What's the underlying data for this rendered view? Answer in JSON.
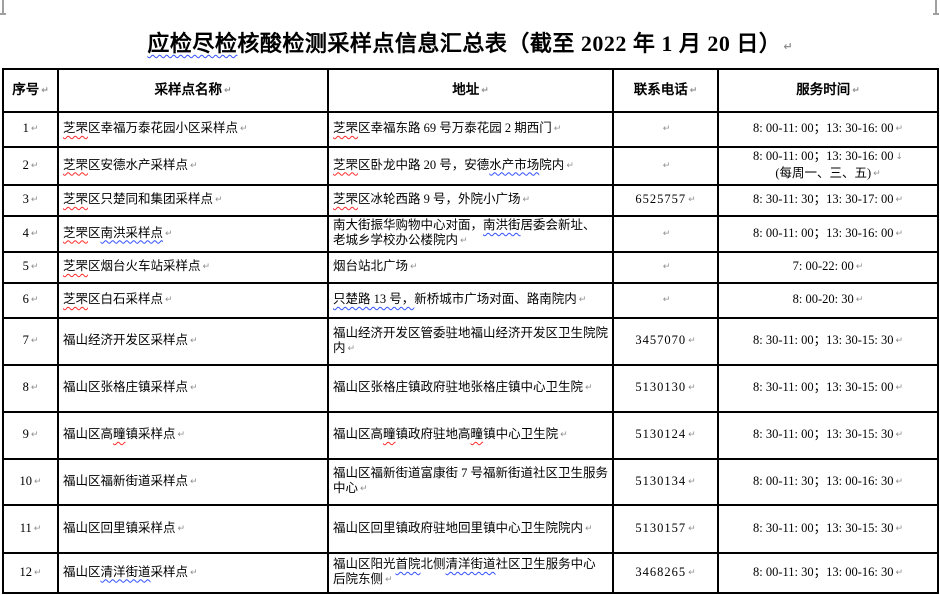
{
  "page": {
    "background": "#ffffff",
    "border_color": "#000000",
    "spellcheck_red": "#ff2a2a",
    "grammar_blue": "#3050ff",
    "formatting_mark_color": "#8f8f8f"
  },
  "marks": {
    "cell_end": "↵",
    "line_break": "↓"
  },
  "title": {
    "full_text": "应检尽检核酸检测采样点信息汇总表（截至 2022 年 1 月 20 日）",
    "segments": [
      {
        "text": "应检尽检",
        "wavy": "blue"
      },
      {
        "text": "核酸检测采样点信息汇总表（截至 2022 年 1 月 20 日）"
      }
    ]
  },
  "table": {
    "headers": [
      "序号",
      "采样点名称",
      "地址",
      "联系电话",
      "服务时间"
    ],
    "rows": [
      {
        "no": "1",
        "name": [
          {
            "text": "芝罘",
            "wavy": "red"
          },
          {
            "text": "区幸福万泰花园小区采样点"
          }
        ],
        "address": [
          {
            "text": "芝罘",
            "wavy": "red"
          },
          {
            "text": "区幸福东路 69 号万泰花园 2 期西门"
          }
        ],
        "phone": "",
        "time": [
          "8: 00-11: 00；13: 30-16: 00"
        ]
      },
      {
        "no": "2",
        "name": [
          {
            "text": "芝罘",
            "wavy": "red"
          },
          {
            "text": "区安德水产采样点"
          }
        ],
        "address": [
          {
            "text": "芝罘",
            "wavy": "red"
          },
          {
            "text": "区卧龙中路 20 号，安德"
          },
          {
            "text": "水产市场",
            "wavy": "blue"
          },
          {
            "text": "院内"
          }
        ],
        "phone": "",
        "time": [
          "8: 00-11: 00；13: 30-16: 00",
          "(每周一、三、五)"
        ]
      },
      {
        "no": "3",
        "name": [
          {
            "text": "芝罘",
            "wavy": "red"
          },
          {
            "text": "区只楚同和集团采样点"
          }
        ],
        "address": [
          {
            "text": "芝罘",
            "wavy": "red"
          },
          {
            "text": "区冰轮西路 9 号，外院小广场"
          }
        ],
        "phone": "6525757",
        "time": [
          "8: 30-11: 30；13: 30-17: 00"
        ]
      },
      {
        "no": "4",
        "name": [
          {
            "text": "芝罘",
            "wavy": "red"
          },
          {
            "text": "区"
          },
          {
            "text": "南洪采样点",
            "wavy": "blue"
          }
        ],
        "address": [
          {
            "text": "南大街振华购物中心对面，"
          },
          {
            "text": "南洪街",
            "wavy": "blue"
          },
          {
            "text": "居委会新址、老城乡学校办公楼院内"
          }
        ],
        "phone": "",
        "time": [
          "8: 00-11: 00；13: 30-16: 00"
        ]
      },
      {
        "no": "5",
        "name": [
          {
            "text": "芝罘",
            "wavy": "red"
          },
          {
            "text": "区烟台火车站采样点"
          }
        ],
        "address": [
          {
            "text": "烟台站北广场"
          }
        ],
        "phone": "",
        "time": [
          "7: 00-22: 00"
        ]
      },
      {
        "no": "6",
        "name": [
          {
            "text": "芝罘",
            "wavy": "red"
          },
          {
            "text": "区白石采样点"
          }
        ],
        "address": [
          {
            "text": "只楚路 13 号，",
            "wavy": "blue"
          },
          {
            "text": "新桥城市广场对面、路南院内"
          }
        ],
        "phone": "",
        "time": [
          "8: 00-20: 30"
        ]
      },
      {
        "no": "7",
        "name": [
          {
            "text": "福山经济开发区采样点"
          }
        ],
        "address": [
          {
            "text": "福山经济开发区管委驻地福山经济开发区卫生院院内"
          }
        ],
        "phone": "3457070",
        "time": [
          "8: 30-11: 00；13: 30-15: 30"
        ]
      },
      {
        "no": "8",
        "name": [
          {
            "text": "福山区张格庄镇采样点"
          }
        ],
        "address": [
          {
            "text": "福山区张格庄镇政府驻地张格庄镇中心卫生院"
          }
        ],
        "phone": "5130130",
        "time": [
          "8: 30-11: 00；13: 30-15: 00"
        ]
      },
      {
        "no": "9",
        "name": [
          {
            "text": "福山区高"
          },
          {
            "text": "疃",
            "wavy": "red"
          },
          {
            "text": "镇采样点"
          }
        ],
        "address": [
          {
            "text": "福山区高"
          },
          {
            "text": "疃",
            "wavy": "red"
          },
          {
            "text": "镇政府驻地高"
          },
          {
            "text": "疃",
            "wavy": "red"
          },
          {
            "text": "镇中心卫生院"
          }
        ],
        "phone": "5130124",
        "time": [
          "8: 30-11: 00；13: 30-15: 30"
        ]
      },
      {
        "no": "10",
        "name": [
          {
            "text": "福山区福新街道采样点"
          }
        ],
        "address": [
          {
            "text": "福山区福新街道富康街 7 号福新街道社区卫生服务中心"
          }
        ],
        "phone": "5130134",
        "time": [
          "8: 00-11: 30；13: 00-16: 30"
        ]
      },
      {
        "no": "11",
        "name": [
          {
            "text": "福山区回里镇采样点"
          }
        ],
        "address": [
          {
            "text": "福山区回里镇政府驻地回里镇中心卫生院院内"
          }
        ],
        "phone": "5130157",
        "time": [
          "8: 30-11: 00；13: 30-15: 30"
        ]
      },
      {
        "no": "12",
        "name": [
          {
            "text": "福山区"
          },
          {
            "text": "清洋街道",
            "wavy": "blue"
          },
          {
            "text": "采样点"
          }
        ],
        "address": [
          {
            "text": "福山区阳光"
          },
          {
            "text": "首院",
            "wavy": "blue"
          },
          {
            "text": "北侧"
          },
          {
            "text": "清洋街道",
            "wavy": "blue"
          },
          {
            "text": "社区卫生服务中心后院东侧"
          }
        ],
        "phone": "3468265",
        "time": [
          "8: 00-11: 30；13: 00-16: 30"
        ]
      }
    ]
  }
}
